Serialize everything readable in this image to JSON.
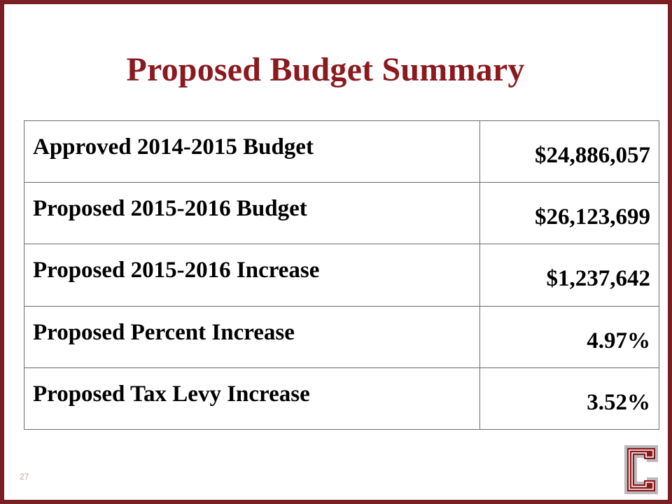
{
  "slide": {
    "title": "Proposed Budget Summary",
    "page_number": "27",
    "accent_color": "#8b1a1f",
    "logo_icon": "letter-c-logo",
    "logo_text": "C"
  },
  "table": {
    "rows": [
      {
        "label": "Approved 2014-2015 Budget",
        "value": "$24,886,057"
      },
      {
        "label": "Proposed 2015-2016 Budget",
        "value": "$26,123,699"
      },
      {
        "label": "Proposed 2015-2016 Increase",
        "value": "$1,237,642"
      },
      {
        "label": "Proposed Percent Increase",
        "value": "4.97%"
      },
      {
        "label": "Proposed Tax Levy Increase",
        "value": "3.52%"
      }
    ]
  }
}
